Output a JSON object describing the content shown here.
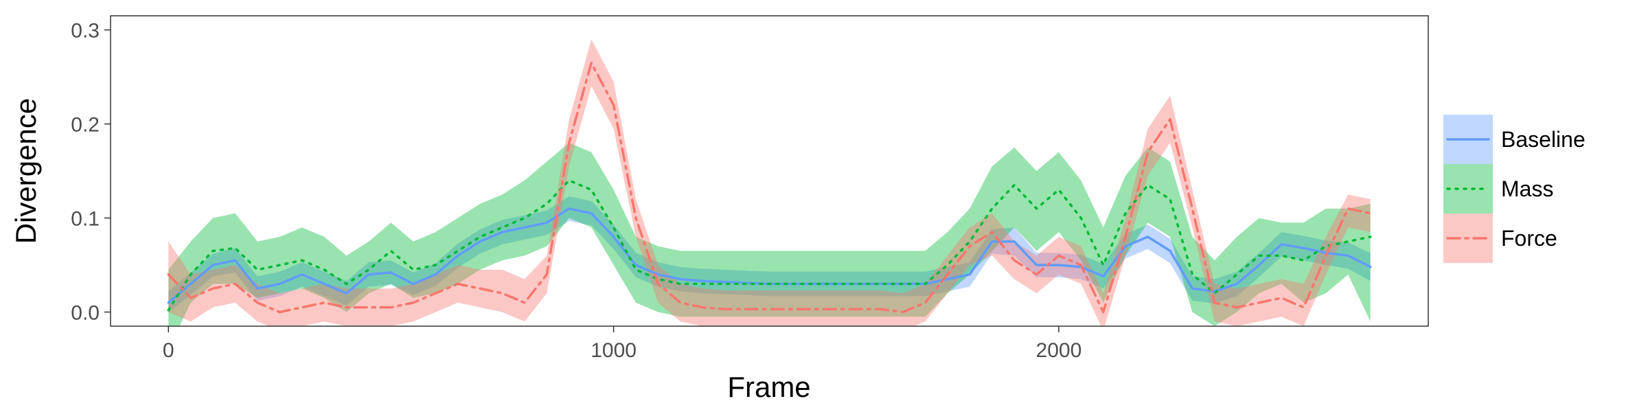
{
  "chart_data": {
    "type": "line",
    "xlabel": "Frame",
    "ylabel": "Divergence",
    "xlim": [
      -130,
      2830
    ],
    "ylim": [
      -0.015,
      0.315
    ],
    "xticks": [
      0,
      1000,
      2000
    ],
    "yticks": [
      0.0,
      0.1,
      0.2,
      0.3
    ],
    "ytick_labels": [
      "0.0",
      "0.1",
      "0.2",
      "0.3"
    ],
    "grid": false,
    "legend_position": "right",
    "x": [
      0,
      50,
      100,
      150,
      200,
      250,
      300,
      350,
      400,
      450,
      500,
      550,
      600,
      650,
      700,
      750,
      800,
      850,
      900,
      950,
      1000,
      1050,
      1100,
      1150,
      1200,
      1250,
      1300,
      1350,
      1400,
      1450,
      1500,
      1550,
      1600,
      1650,
      1700,
      1750,
      1800,
      1850,
      1900,
      1950,
      2000,
      2050,
      2100,
      2150,
      2200,
      2250,
      2300,
      2350,
      2400,
      2450,
      2500,
      2550,
      2600,
      2650,
      2700
    ],
    "series": [
      {
        "name": "Baseline",
        "color": "#619CFF",
        "linestyle": "solid",
        "mean": [
          0.01,
          0.03,
          0.05,
          0.055,
          0.025,
          0.03,
          0.04,
          0.03,
          0.02,
          0.04,
          0.042,
          0.03,
          0.04,
          0.06,
          0.075,
          0.085,
          0.09,
          0.095,
          0.11,
          0.105,
          0.08,
          0.05,
          0.04,
          0.035,
          0.033,
          0.032,
          0.031,
          0.03,
          0.03,
          0.03,
          0.03,
          0.03,
          0.03,
          0.03,
          0.03,
          0.035,
          0.04,
          0.075,
          0.075,
          0.05,
          0.05,
          0.048,
          0.038,
          0.07,
          0.08,
          0.065,
          0.025,
          0.022,
          0.03,
          0.05,
          0.072,
          0.068,
          0.063,
          0.06,
          0.048
        ],
        "lower": [
          0.0,
          0.018,
          0.038,
          0.042,
          0.012,
          0.017,
          0.027,
          0.017,
          0.007,
          0.027,
          0.029,
          0.018,
          0.028,
          0.047,
          0.062,
          0.072,
          0.077,
          0.082,
          0.097,
          0.092,
          0.067,
          0.037,
          0.027,
          0.022,
          0.02,
          0.019,
          0.018,
          0.017,
          0.017,
          0.017,
          0.017,
          0.017,
          0.017,
          0.017,
          0.017,
          0.022,
          0.027,
          0.062,
          0.06,
          0.037,
          0.037,
          0.035,
          0.025,
          0.057,
          0.067,
          0.052,
          0.012,
          0.009,
          0.017,
          0.037,
          0.059,
          0.055,
          0.05,
          0.046,
          0.033
        ],
        "upper": [
          0.022,
          0.042,
          0.062,
          0.068,
          0.038,
          0.043,
          0.053,
          0.043,
          0.033,
          0.053,
          0.055,
          0.042,
          0.052,
          0.073,
          0.088,
          0.098,
          0.103,
          0.108,
          0.123,
          0.118,
          0.093,
          0.063,
          0.053,
          0.048,
          0.046,
          0.045,
          0.044,
          0.043,
          0.043,
          0.043,
          0.043,
          0.043,
          0.043,
          0.043,
          0.043,
          0.048,
          0.053,
          0.088,
          0.09,
          0.063,
          0.063,
          0.061,
          0.051,
          0.083,
          0.093,
          0.078,
          0.038,
          0.035,
          0.043,
          0.063,
          0.085,
          0.081,
          0.076,
          0.074,
          0.063
        ]
      },
      {
        "name": "Mass",
        "color": "#00BA38",
        "linestyle": "dotted",
        "mean": [
          0.002,
          0.04,
          0.065,
          0.068,
          0.045,
          0.05,
          0.055,
          0.045,
          0.03,
          0.045,
          0.065,
          0.045,
          0.05,
          0.065,
          0.08,
          0.09,
          0.1,
          0.115,
          0.14,
          0.13,
          0.09,
          0.045,
          0.035,
          0.03,
          0.03,
          0.03,
          0.03,
          0.03,
          0.03,
          0.03,
          0.03,
          0.03,
          0.03,
          0.03,
          0.03,
          0.05,
          0.075,
          0.11,
          0.135,
          0.11,
          0.13,
          0.1,
          0.05,
          0.105,
          0.135,
          0.12,
          0.04,
          0.02,
          0.04,
          0.06,
          0.06,
          0.055,
          0.07,
          0.075,
          0.08
        ],
        "lower": [
          -0.04,
          0.01,
          0.03,
          0.03,
          0.015,
          0.02,
          0.025,
          0.015,
          0.0,
          0.02,
          0.03,
          0.015,
          0.02,
          0.03,
          0.045,
          0.055,
          0.06,
          0.07,
          0.1,
          0.09,
          0.05,
          0.01,
          0.0,
          -0.005,
          -0.005,
          -0.005,
          -0.005,
          -0.005,
          -0.005,
          -0.005,
          -0.005,
          -0.005,
          -0.005,
          -0.005,
          -0.005,
          0.02,
          0.04,
          0.065,
          0.09,
          0.065,
          0.085,
          0.055,
          0.01,
          0.06,
          0.095,
          0.08,
          0.0,
          -0.015,
          0.0,
          0.02,
          0.03,
          0.01,
          0.02,
          0.04,
          -0.01
        ],
        "upper": [
          0.045,
          0.075,
          0.1,
          0.105,
          0.075,
          0.08,
          0.09,
          0.08,
          0.06,
          0.075,
          0.095,
          0.075,
          0.085,
          0.1,
          0.115,
          0.125,
          0.14,
          0.16,
          0.18,
          0.17,
          0.13,
          0.08,
          0.07,
          0.065,
          0.065,
          0.065,
          0.065,
          0.065,
          0.065,
          0.065,
          0.065,
          0.065,
          0.065,
          0.065,
          0.065,
          0.085,
          0.11,
          0.155,
          0.175,
          0.15,
          0.17,
          0.14,
          0.09,
          0.145,
          0.175,
          0.16,
          0.08,
          0.055,
          0.08,
          0.1,
          0.095,
          0.095,
          0.11,
          0.11,
          0.115
        ]
      },
      {
        "name": "Force",
        "color": "#F8766D",
        "linestyle": "dashdot",
        "mean": [
          0.04,
          0.015,
          0.025,
          0.03,
          0.01,
          0.0,
          0.005,
          0.01,
          0.005,
          0.005,
          0.005,
          0.01,
          0.02,
          0.03,
          0.025,
          0.02,
          0.01,
          0.04,
          0.18,
          0.265,
          0.22,
          0.1,
          0.03,
          0.01,
          0.005,
          0.003,
          0.003,
          0.003,
          0.003,
          0.003,
          0.003,
          0.003,
          0.003,
          0.0,
          0.01,
          0.04,
          0.07,
          0.085,
          0.055,
          0.04,
          0.06,
          0.05,
          0.0,
          0.08,
          0.17,
          0.205,
          0.11,
          0.01,
          0.005,
          0.01,
          0.015,
          0.005,
          0.06,
          0.11,
          0.105
        ],
        "lower": [
          0.0,
          -0.01,
          0.005,
          0.01,
          -0.01,
          -0.02,
          -0.015,
          -0.01,
          -0.015,
          -0.015,
          -0.015,
          -0.01,
          0.0,
          0.01,
          0.005,
          0.0,
          -0.01,
          0.02,
          0.155,
          0.24,
          0.195,
          0.08,
          0.01,
          -0.01,
          -0.015,
          -0.017,
          -0.017,
          -0.017,
          -0.017,
          -0.017,
          -0.017,
          -0.017,
          -0.017,
          -0.02,
          -0.01,
          0.02,
          0.05,
          0.06,
          0.035,
          0.02,
          0.04,
          0.03,
          -0.02,
          0.06,
          0.145,
          0.18,
          0.09,
          -0.01,
          -0.015,
          -0.01,
          -0.005,
          -0.015,
          0.04,
          0.09,
          0.085
        ],
        "upper": [
          0.075,
          0.04,
          0.045,
          0.05,
          0.03,
          0.02,
          0.025,
          0.03,
          0.025,
          0.025,
          0.025,
          0.03,
          0.04,
          0.05,
          0.045,
          0.045,
          0.035,
          0.06,
          0.205,
          0.29,
          0.245,
          0.12,
          0.05,
          0.03,
          0.025,
          0.023,
          0.023,
          0.023,
          0.023,
          0.023,
          0.023,
          0.023,
          0.023,
          0.02,
          0.03,
          0.06,
          0.09,
          0.105,
          0.075,
          0.06,
          0.08,
          0.07,
          0.02,
          0.1,
          0.195,
          0.23,
          0.13,
          0.03,
          0.025,
          0.03,
          0.035,
          0.03,
          0.08,
          0.125,
          0.12
        ]
      }
    ]
  }
}
